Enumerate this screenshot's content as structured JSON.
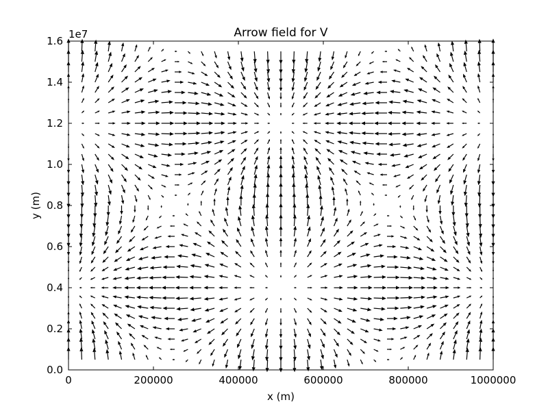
{
  "chart_data": {
    "type": "quiver",
    "title": "Arrow field for V",
    "xlabel": "x (m)",
    "ylabel": "y (m)",
    "xlim": [
      0,
      1000000
    ],
    "ylim": [
      0,
      16000000
    ],
    "x_ticks": [
      0,
      200000,
      400000,
      600000,
      800000,
      1000000
    ],
    "x_tick_labels": [
      "0",
      "200000",
      "400000",
      "600000",
      "800000",
      "1000000"
    ],
    "y_ticks": [
      0,
      2000000,
      4000000,
      6000000,
      8000000,
      10000000,
      12000000,
      14000000,
      16000000
    ],
    "y_tick_labels": [
      "0.0",
      "0.2",
      "0.4",
      "0.6",
      "0.8",
      "1.0",
      "1.2",
      "1.4",
      "1.6"
    ],
    "y_offset_label": "1e7",
    "grid": false,
    "arrow_color": "#000000",
    "field": {
      "x_start": 0,
      "x_step": 31250,
      "x_count": 33,
      "y_start": 500000,
      "y_step": 500000,
      "y_count": 31,
      "u": "-sin(2*pi*x/1000000)*sin(2*pi*y/16000000)",
      "v": "cos(2*pi*x/1000000)*cos(2*pi*y/16000000)"
    }
  }
}
